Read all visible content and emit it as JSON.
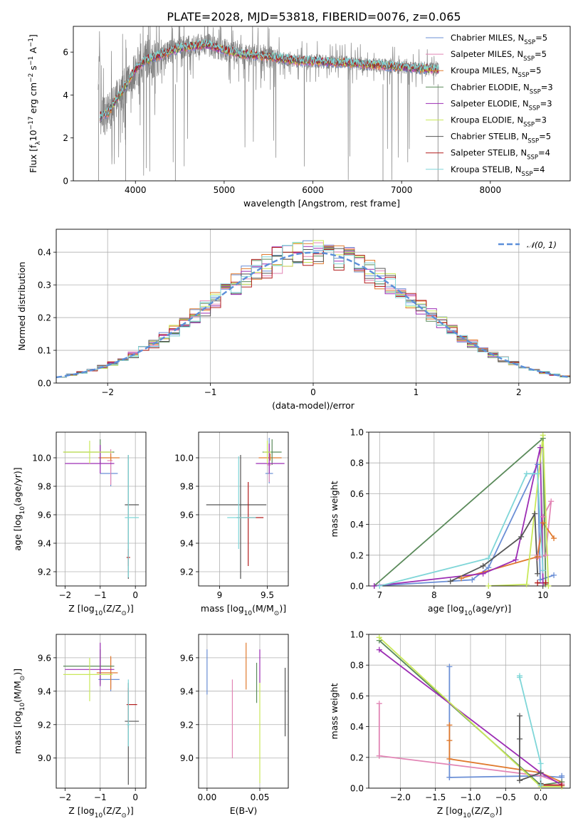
{
  "figure_title": "PLATE=2028, MJD=53818, FIBERID=0076, z=0.065",
  "colors": {
    "grid": "#b0b0b0",
    "observed": "#808080",
    "gaussian": "#5b8fd9",
    "series": [
      "#6b8fd6",
      "#e285b5",
      "#e07a2e",
      "#5a8a5a",
      "#9c2db4",
      "#c9e85a",
      "#555555",
      "#b31d1d",
      "#7fd6d8"
    ]
  },
  "models": [
    {
      "label": "Chabrier MILES, N",
      "sub": "SSP",
      "suffix": "=5"
    },
    {
      "label": "Salpeter MILES, N",
      "sub": "SSP",
      "suffix": "=5"
    },
    {
      "label": "Kroupa MILES, N",
      "sub": "SSP",
      "suffix": "=5"
    },
    {
      "label": "Chabrier ELODIE, N",
      "sub": "SSP",
      "suffix": "=3"
    },
    {
      "label": "Salpeter ELODIE, N",
      "sub": "SSP",
      "suffix": "=3"
    },
    {
      "label": "Kroupa ELODIE, N",
      "sub": "SSP",
      "suffix": "=3"
    },
    {
      "label": "Chabrier STELIB, N",
      "sub": "SSP",
      "suffix": "=5"
    },
    {
      "label": "Salpeter STELIB, N",
      "sub": "SSP",
      "suffix": "=4"
    },
    {
      "label": "Kroupa STELIB, N",
      "sub": "SSP",
      "suffix": "=4"
    }
  ],
  "chart_data": [
    {
      "id": "spectrum",
      "type": "line",
      "xlabel": "wavelength [Angstrom, rest frame]",
      "ylabel": {
        "pre": "Flux [f",
        "sub": "λ",
        "mid": "10",
        "sup1": "−17",
        "post": " erg cm",
        "sup2": "−2",
        "post2": " s",
        "sup3": "−1",
        "post3": " A",
        "sup4": "−1",
        "end": "]"
      },
      "xlim": [
        3300,
        8900
      ],
      "ylim": [
        0,
        7.2
      ],
      "xticks": [
        4000,
        5000,
        6000,
        7000,
        8000
      ],
      "yticks": [
        0,
        2,
        4,
        6
      ],
      "continuum": [
        [
          3600,
          3.0
        ],
        [
          3700,
          3.2
        ],
        [
          3800,
          3.9
        ],
        [
          3900,
          4.5
        ],
        [
          4000,
          5.2
        ],
        [
          4100,
          5.6
        ],
        [
          4300,
          5.9
        ],
        [
          4500,
          6.2
        ],
        [
          4800,
          6.35
        ],
        [
          5000,
          6.1
        ],
        [
          5200,
          5.9
        ],
        [
          5500,
          5.8
        ],
        [
          5800,
          5.6
        ],
        [
          6100,
          5.55
        ],
        [
          6400,
          5.5
        ],
        [
          6700,
          5.4
        ],
        [
          7000,
          5.3
        ],
        [
          7400,
          5.2
        ]
      ],
      "model_extent": [
        3600,
        7420
      ],
      "observed_extent": [
        3580,
        7420
      ],
      "legend_position": "upper right"
    },
    {
      "id": "residuals",
      "type": "histogram",
      "xlabel": "(data-model)/error",
      "ylabel": "Normed distribution",
      "xlim": [
        -2.5,
        2.5
      ],
      "ylim": [
        0,
        0.47
      ],
      "xticks": [
        -2,
        -1,
        0,
        1,
        2
      ],
      "yticks": [
        0.0,
        0.1,
        0.2,
        0.3,
        0.4
      ],
      "bin_width": 0.1,
      "reference": {
        "label": "𝒩(0, 1)",
        "mean": 0,
        "sigma": 1
      },
      "legend_position": "upper right"
    },
    {
      "id": "age_vs_Z",
      "type": "errorbar",
      "xlabel": {
        "pre": "Z [log",
        "sub": "10",
        "post": "(Z/Z",
        "sub2": "⊙",
        "end": ")]"
      },
      "ylabel": {
        "pre": "age  [log",
        "sub": "10",
        "post": "(age/yr)]"
      },
      "xlim": [
        -2.25,
        0.3
      ],
      "ylim": [
        9.1,
        10.18
      ],
      "xticks": [
        -2,
        -1,
        0
      ],
      "yticks": [
        9.2,
        9.4,
        9.6,
        9.8,
        10.0
      ],
      "points": [
        {
          "x": -0.7,
          "xerr": [
            0.3,
            0.2
          ],
          "y": 9.89,
          "yerr": [
            0.09,
            0.12
          ]
        },
        {
          "x": -0.7,
          "xerr": [
            0.1,
            0.05
          ],
          "y": 9.98,
          "yerr": [
            0.17,
            0.08
          ]
        },
        {
          "x": -0.7,
          "xerr": [
            0.35,
            0.25
          ],
          "y": 10.0,
          "yerr": [
            0.02,
            0.03
          ]
        },
        {
          "x": -1.0,
          "xerr": [
            1.05,
            0.4
          ],
          "y": 10.04,
          "yerr": [
            0.08,
            0.09
          ]
        },
        {
          "x": -1.0,
          "xerr": [
            1.0,
            0.4
          ],
          "y": 9.96,
          "yerr": [
            0.07,
            0.13
          ]
        },
        {
          "x": -1.3,
          "xerr": [
            0.75,
            0.65
          ],
          "y": 10.04,
          "yerr": [
            0.08,
            0.08
          ]
        },
        {
          "x": -0.2,
          "xerr": [
            0.1,
            0.3
          ],
          "y": 9.67,
          "yerr": [
            0.52,
            0.35
          ]
        },
        {
          "x": -0.2,
          "xerr": [
            0.05,
            0.05
          ],
          "y": 9.3,
          "yerr": [
            0.06,
            0.06
          ]
        },
        {
          "x": -0.2,
          "xerr": [
            0.1,
            0.3
          ],
          "y": 9.58,
          "yerr": [
            0.42,
            0.44
          ]
        }
      ]
    },
    {
      "id": "age_vs_mass",
      "type": "errorbar",
      "xlabel": {
        "pre": "mass [log",
        "sub": "10",
        "post": "(M/M",
        "sub2": "⊙",
        "end": ")]"
      },
      "ylabel": "",
      "xlim": [
        8.78,
        9.72
      ],
      "ylim": [
        9.1,
        10.18
      ],
      "xticks": [
        9.0,
        9.5
      ],
      "yticks": [
        9.2,
        9.4,
        9.6,
        9.8,
        10.0
      ],
      "points": [
        {
          "x": 9.52,
          "xerr": [
            0.04,
            0.04
          ],
          "y": 9.89,
          "yerr": [
            0.07,
            0.25
          ]
        },
        {
          "x": 9.52,
          "xerr": [
            0.02,
            0.02
          ],
          "y": 9.95,
          "yerr": [
            0.12,
            0.14
          ]
        },
        {
          "x": 9.53,
          "xerr": [
            0.12,
            0.12
          ],
          "y": 10.0,
          "yerr": [
            0.02,
            0.03
          ]
        },
        {
          "x": 9.55,
          "xerr": [
            0.1,
            0.1
          ],
          "y": 10.04,
          "yerr": [
            0.09,
            0.09
          ]
        },
        {
          "x": 9.52,
          "xerr": [
            0.14,
            0.16
          ],
          "y": 9.96,
          "yerr": [
            0.07,
            0.14
          ]
        },
        {
          "x": 9.5,
          "xerr": [
            0.04,
            0.04
          ],
          "y": 10.04,
          "yerr": [
            0.08,
            0.08
          ]
        },
        {
          "x": 9.22,
          "xerr": [
            0.36,
            0.27
          ],
          "y": 9.67,
          "yerr": [
            0.52,
            0.35
          ]
        },
        {
          "x": 9.3,
          "xerr": [
            0.12,
            0.16
          ],
          "y": 9.58,
          "yerr": [
            0.34,
            0.25
          ]
        },
        {
          "x": 9.2,
          "xerr": [
            0.12,
            0.18
          ],
          "y": 9.58,
          "yerr": [
            0.22,
            0.43
          ]
        }
      ]
    },
    {
      "id": "weight_vs_age",
      "type": "line",
      "xlabel": {
        "pre": "age  [log",
        "sub": "10",
        "post": "(age/yr)]"
      },
      "ylabel": "mass weight",
      "xlim": [
        6.8,
        10.5
      ],
      "ylim": [
        0,
        1.0
      ],
      "xticks": [
        7,
        8,
        9,
        10
      ],
      "yticks": [
        0.0,
        0.2,
        0.4,
        0.6,
        0.8,
        1.0
      ],
      "series": [
        {
          "x": [
            6.9,
            8.7,
            9.0,
            9.9,
            9.95,
            10.2
          ],
          "y": [
            0.0,
            0.04,
            0.12,
            0.79,
            0.04,
            0.07
          ]
        },
        {
          "x": [
            9.9,
            10.05,
            10.15,
            10.0,
            9.9
          ],
          "y": [
            0.18,
            0.2,
            0.55,
            0.45,
            0.2
          ]
        },
        {
          "x": [
            8.5,
            9.9,
            10.0,
            10.2
          ],
          "y": [
            0.05,
            0.19,
            0.41,
            0.31
          ]
        },
        {
          "x": [
            6.9,
            10.0,
            10.05
          ],
          "y": [
            0.0,
            0.96,
            0.01
          ]
        },
        {
          "x": [
            6.9,
            8.9,
            9.5,
            9.95,
            10.0
          ],
          "y": [
            0.0,
            0.08,
            0.17,
            0.9,
            0.02
          ]
        },
        {
          "x": [
            9.0,
            9.7,
            10.0,
            10.1
          ],
          "y": [
            0.0,
            0.01,
            0.98,
            0.0
          ]
        },
        {
          "x": [
            8.3,
            8.9,
            9.6,
            9.85,
            9.9
          ],
          "y": [
            0.03,
            0.13,
            0.32,
            0.47,
            0.08
          ]
        },
        {
          "x": [
            9.9,
            10.05
          ],
          "y": [
            0.02,
            0.02
          ]
        },
        {
          "x": [
            7.0,
            9.0,
            9.7,
            9.9,
            10.0
          ],
          "y": [
            0.0,
            0.18,
            0.73,
            0.73,
            0.1
          ]
        }
      ]
    },
    {
      "id": "mass_vs_Z",
      "type": "errorbar",
      "xlabel": {
        "pre": "Z [log",
        "sub": "10",
        "post": "(Z/Z",
        "sub2": "⊙",
        "end": ")]"
      },
      "ylabel": {
        "pre": "mass [log",
        "sub": "10",
        "post": "(M/M",
        "sub2": "⊙",
        "end": ")]"
      },
      "xlim": [
        -2.25,
        0.3
      ],
      "ylim": [
        8.82,
        9.74
      ],
      "xticks": [
        -2,
        -1,
        0
      ],
      "yticks": [
        9.0,
        9.2,
        9.4,
        9.6
      ],
      "points": [
        {
          "x": -0.7,
          "xerr": [
            0.35,
            0.25
          ],
          "y": 9.47,
          "yerr": [
            0.07,
            0.07
          ]
        },
        {
          "x": -0.7,
          "xerr": [
            0.05,
            0.05
          ],
          "y": 9.5,
          "yerr": [
            0.08,
            0.1
          ]
        },
        {
          "x": -0.7,
          "xerr": [
            0.4,
            0.2
          ],
          "y": 9.51,
          "yerr": [
            0.1,
            0.1
          ]
        },
        {
          "x": -1.0,
          "xerr": [
            1.05,
            0.4
          ],
          "y": 9.55,
          "yerr": [
            0.11,
            0.1
          ]
        },
        {
          "x": -1.0,
          "xerr": [
            1.0,
            0.4
          ],
          "y": 9.53,
          "yerr": [
            0.1,
            0.16
          ]
        },
        {
          "x": -1.3,
          "xerr": [
            0.75,
            0.65
          ],
          "y": 9.5,
          "yerr": [
            0.16,
            0.1
          ]
        },
        {
          "x": -0.2,
          "xerr": [
            0.1,
            0.3
          ],
          "y": 9.22,
          "yerr": [
            0.38,
            0.23
          ]
        },
        {
          "x": -0.2,
          "xerr": [
            0.05,
            0.25
          ],
          "y": 9.32,
          "yerr": [
            0.14,
            0.1
          ]
        },
        {
          "x": -0.2,
          "xerr": [
            0.05,
            0.05
          ],
          "y": 9.2,
          "yerr": [
            0.13,
            0.27
          ]
        }
      ]
    },
    {
      "id": "mass_vs_ebv",
      "type": "errorbar",
      "xlabel": "E(B-V)",
      "ylabel": "",
      "xlim": [
        -0.008,
        0.077
      ],
      "ylim": [
        8.82,
        9.74
      ],
      "xticks": [
        0.0,
        0.05
      ],
      "xticklabels": [
        "0.00",
        "0.05"
      ],
      "yticks": [
        9.0,
        9.2,
        9.4,
        9.6
      ],
      "points": [
        {
          "x": 0.0,
          "xerr": [
            0,
            0
          ],
          "y": 9.52,
          "yerr": [
            0.14,
            0.13
          ]
        },
        {
          "x": 0.024,
          "xerr": [
            0,
            0
          ],
          "y": 9.24,
          "yerr": [
            0.24,
            0.23
          ]
        },
        {
          "x": 0.037,
          "xerr": [
            0,
            0
          ],
          "y": 9.55,
          "yerr": [
            0.14,
            0.14
          ]
        },
        {
          "x": 0.047,
          "xerr": [
            0,
            0
          ],
          "y": 9.45,
          "yerr": [
            0.12,
            0.12
          ]
        },
        {
          "x": 0.05,
          "xerr": [
            0,
            0
          ],
          "y": 9.55,
          "yerr": [
            0.1,
            0.1
          ]
        },
        {
          "x": 0.05,
          "xerr": [
            0,
            0
          ],
          "y": 9.2,
          "yerr": [
            0.35,
            0.25
          ]
        },
        {
          "x": 0.074,
          "xerr": [
            0,
            0
          ],
          "y": 9.33,
          "yerr": [
            0.2,
            0.21
          ]
        }
      ]
    },
    {
      "id": "weight_vs_Z",
      "type": "line",
      "xlabel": {
        "pre": "Z [log",
        "sub": "10",
        "post": "(Z/Z",
        "sub2": "⊙",
        "end": ")]"
      },
      "ylabel": "mass weight",
      "xlim": [
        -2.45,
        0.42
      ],
      "ylim": [
        0,
        1.0
      ],
      "xticks": [
        -2.0,
        -1.5,
        -1.0,
        -0.5,
        0.0
      ],
      "xticklabels": [
        "−2.0",
        "−1.5",
        "−1.0",
        "−0.5",
        "0.0"
      ],
      "yticks": [
        0.0,
        0.2,
        0.4,
        0.6,
        0.8,
        1.0
      ],
      "series": [
        {
          "x": [
            -1.3,
            -1.3,
            -1.3,
            0.0,
            0.3,
            0.3
          ],
          "y": [
            0.79,
            0.07,
            0.07,
            0.08,
            0.07,
            0.08
          ]
        },
        {
          "x": [
            -2.3,
            -2.3,
            -2.3,
            0.0,
            0.3
          ],
          "y": [
            0.55,
            0.21,
            0.21,
            0.08,
            0.03
          ]
        },
        {
          "x": [
            -1.3,
            -1.3,
            -1.3,
            0.0,
            0.3
          ],
          "y": [
            0.41,
            0.31,
            0.19,
            0.1,
            0.04
          ]
        },
        {
          "x": [
            -2.3,
            0.0,
            0.3
          ],
          "y": [
            0.96,
            0.02,
            0.04
          ]
        },
        {
          "x": [
            -2.3,
            0.0,
            0.3
          ],
          "y": [
            0.9,
            0.1,
            0.02
          ]
        },
        {
          "x": [
            -2.3,
            0.0,
            0.3
          ],
          "y": [
            0.98,
            0.01,
            0.01
          ]
        },
        {
          "x": [
            -0.3,
            -0.3,
            -0.3,
            0.0,
            0.0
          ],
          "y": [
            0.47,
            0.32,
            0.05,
            0.1,
            0.03
          ]
        },
        {
          "x": [
            0.0,
            0.3
          ],
          "y": [
            0.02,
            0.02
          ]
        },
        {
          "x": [
            -0.3,
            -0.3,
            0.0,
            0.0
          ],
          "y": [
            0.73,
            0.72,
            0.16,
            0.02
          ]
        }
      ]
    }
  ]
}
